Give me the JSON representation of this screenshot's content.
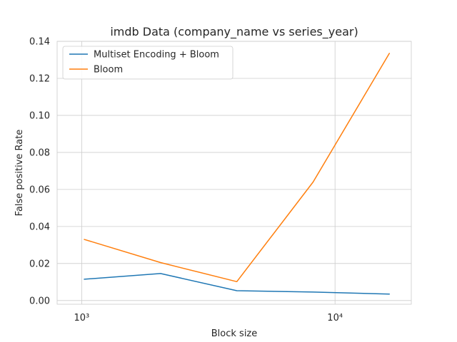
{
  "chart_data": {
    "type": "line",
    "title": "imdb Data (company_name vs series_year)",
    "xlabel": "Block size",
    "ylabel": "False positive Rate",
    "xscale": "log",
    "xlim": [
      800,
      20000
    ],
    "ylim": [
      -0.002,
      0.14
    ],
    "xticks": [
      {
        "value": 1000,
        "label": "10³"
      },
      {
        "value": 10000,
        "label": "10⁴"
      }
    ],
    "yticks": [
      {
        "value": 0.0,
        "label": "0.00"
      },
      {
        "value": 0.02,
        "label": "0.02"
      },
      {
        "value": 0.04,
        "label": "0.04"
      },
      {
        "value": 0.06,
        "label": "0.06"
      },
      {
        "value": 0.08,
        "label": "0.08"
      },
      {
        "value": 0.1,
        "label": "0.10"
      },
      {
        "value": 0.12,
        "label": "0.12"
      },
      {
        "value": 0.14,
        "label": "0.14"
      }
    ],
    "grid": true,
    "legend_position": "top-left",
    "x": [
      1024,
      2048,
      4096,
      8192,
      16384
    ],
    "series": [
      {
        "name": "Multiset Encoding + Bloom",
        "color": "#1f77b4",
        "values": [
          0.0115,
          0.0146,
          0.0053,
          0.0046,
          0.0035
        ]
      },
      {
        "name": "Bloom",
        "color": "#ff7f0e",
        "values": [
          0.033,
          0.0205,
          0.0102,
          0.064,
          0.1335
        ]
      }
    ]
  }
}
